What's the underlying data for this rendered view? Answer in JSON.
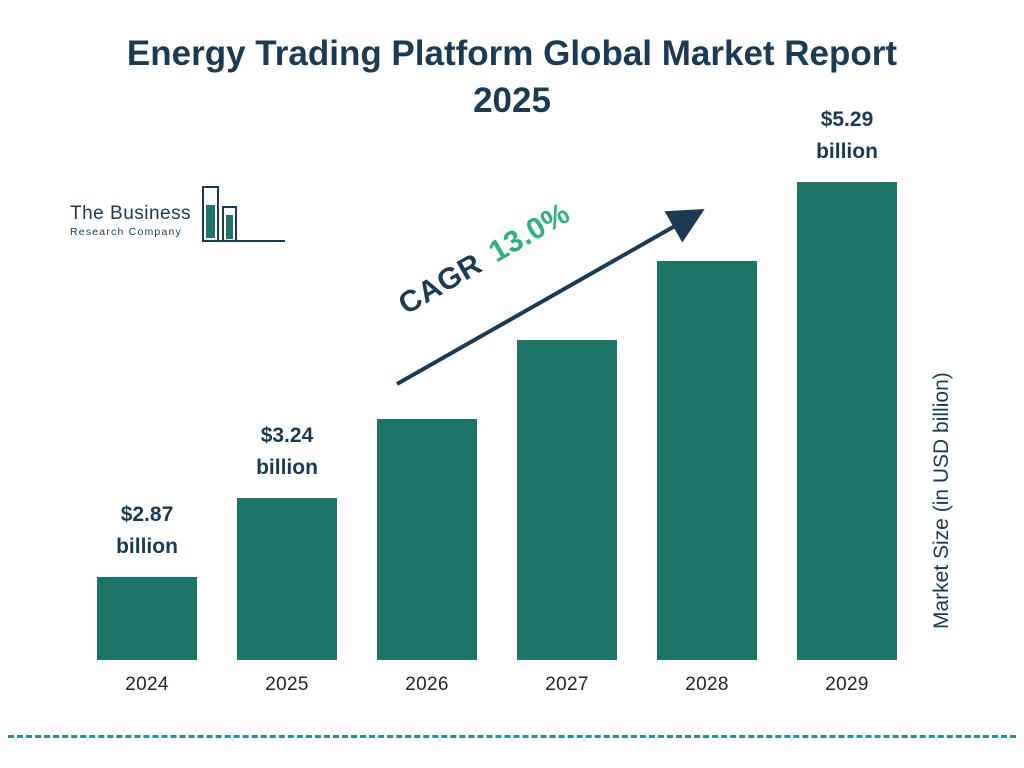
{
  "header": {
    "title_line1": "Energy Trading Platform Global Market Report",
    "title_line2": "2025"
  },
  "logo": {
    "name": "The Business",
    "subname": "Research Company"
  },
  "chart_data": {
    "type": "bar",
    "title": "Energy Trading Platform Global Market Report 2025",
    "categories": [
      "2024",
      "2025",
      "2026",
      "2027",
      "2028",
      "2029"
    ],
    "values": [
      2.87,
      3.24,
      3.66,
      4.14,
      4.67,
      5.29
    ],
    "value_labels": [
      [
        "$2.87",
        "billion"
      ],
      [
        "$3.24",
        "billion"
      ],
      null,
      null,
      null,
      [
        "$5.29",
        "billion"
      ]
    ],
    "ylabel": "Market Size (in USD billion)",
    "xlabel": "",
    "annotation": {
      "label": "CAGR",
      "value": "13.0%"
    },
    "legend": false,
    "grid": false,
    "colors": {
      "bar": "#1E7467",
      "title": "#1C3B53",
      "annotation_value": "#2FAE83",
      "arrow": "#1C3B53",
      "dashed_line": "#2F8C80"
    }
  }
}
